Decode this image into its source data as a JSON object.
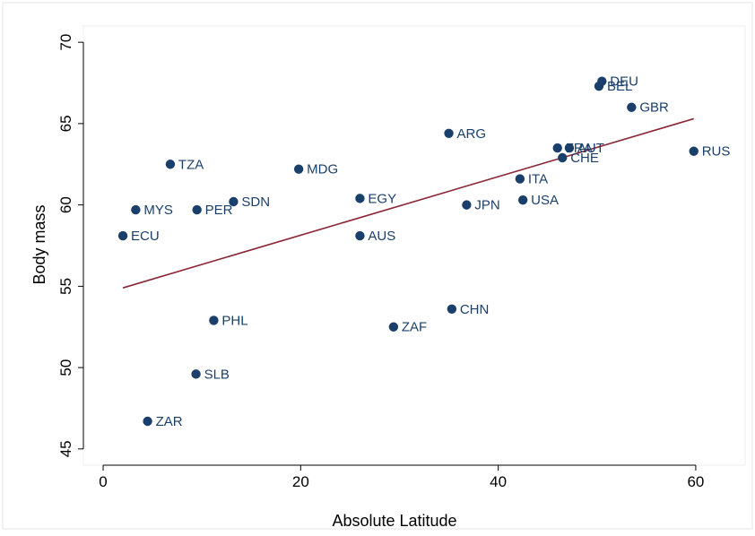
{
  "chart_data": {
    "type": "scatter",
    "title": "",
    "xlabel": "Absolute Latitude",
    "ylabel": "Body mass",
    "xlim": [
      -2,
      65
    ],
    "ylim": [
      44,
      71
    ],
    "xticks": [
      0,
      20,
      40,
      60
    ],
    "yticks": [
      45,
      50,
      55,
      60,
      65,
      70
    ],
    "grid": false,
    "legend": "none",
    "points": [
      {
        "label": "DEU",
        "x": 50.5,
        "y": 67.6
      },
      {
        "label": "BEL",
        "x": 50.2,
        "y": 67.3
      },
      {
        "label": "GBR",
        "x": 53.5,
        "y": 66.0
      },
      {
        "label": "ARG",
        "x": 35.0,
        "y": 64.4
      },
      {
        "label": "FRA",
        "x": 46.0,
        "y": 63.5
      },
      {
        "label": "AUT",
        "x": 47.2,
        "y": 63.5
      },
      {
        "label": "RUS",
        "x": 59.8,
        "y": 63.3
      },
      {
        "label": "CHE",
        "x": 46.5,
        "y": 62.9
      },
      {
        "label": "TZA",
        "x": 6.8,
        "y": 62.5
      },
      {
        "label": "MDG",
        "x": 19.8,
        "y": 62.2
      },
      {
        "label": "ITA",
        "x": 42.2,
        "y": 61.6
      },
      {
        "label": "EGY",
        "x": 26.0,
        "y": 60.4
      },
      {
        "label": "SDN",
        "x": 13.2,
        "y": 60.2
      },
      {
        "label": "USA",
        "x": 42.5,
        "y": 60.3
      },
      {
        "label": "JPN",
        "x": 36.8,
        "y": 60.0
      },
      {
        "label": "MYS",
        "x": 3.3,
        "y": 59.7
      },
      {
        "label": "PER",
        "x": 9.5,
        "y": 59.7
      },
      {
        "label": "ECU",
        "x": 2.0,
        "y": 58.1
      },
      {
        "label": "AUS",
        "x": 26.0,
        "y": 58.1
      },
      {
        "label": "CHN",
        "x": 35.3,
        "y": 53.6
      },
      {
        "label": "PHL",
        "x": 11.2,
        "y": 52.9
      },
      {
        "label": "ZAF",
        "x": 29.4,
        "y": 52.5
      },
      {
        "label": "SLB",
        "x": 9.4,
        "y": 49.6
      },
      {
        "label": "ZAR",
        "x": 4.5,
        "y": 46.7
      }
    ],
    "fit_line": {
      "x": [
        2.0,
        59.8
      ],
      "y": [
        54.9,
        65.3
      ]
    },
    "colors": {
      "marker": "#1a3f6b",
      "label": "#1a3f6b",
      "fit": "#8b2635",
      "axis": "#000000",
      "frame": "#e6e6e6"
    }
  }
}
